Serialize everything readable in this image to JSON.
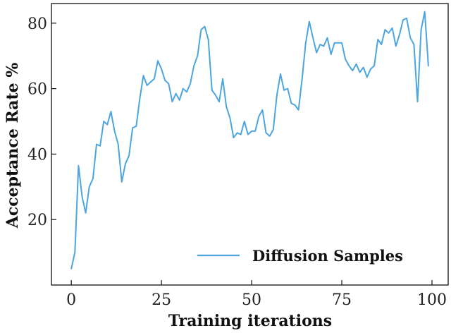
{
  "chart_data": {
    "type": "line",
    "xlabel": "Training iterations",
    "ylabel": "Acceptance Rate %",
    "xlim": [
      -5.5,
      104.5
    ],
    "ylim": [
      0,
      86
    ],
    "xticks": [
      0,
      25,
      50,
      75,
      100
    ],
    "yticks": [
      20,
      40,
      60,
      80
    ],
    "grid": false,
    "legend_position": "lower-right",
    "series": [
      {
        "name": "Diffusion Samples",
        "color": "#4da5e0",
        "x": [
          0,
          1,
          2,
          3,
          4,
          5,
          6,
          7,
          8,
          9,
          10,
          11,
          12,
          13,
          14,
          15,
          16,
          17,
          18,
          19,
          20,
          21,
          22,
          23,
          24,
          25,
          26,
          27,
          28,
          29,
          30,
          31,
          32,
          33,
          34,
          35,
          36,
          37,
          38,
          39,
          40,
          41,
          42,
          43,
          44,
          45,
          46,
          47,
          48,
          49,
          50,
          51,
          52,
          53,
          54,
          55,
          56,
          57,
          58,
          59,
          60,
          61,
          62,
          63,
          64,
          65,
          66,
          67,
          68,
          69,
          70,
          71,
          72,
          73,
          74,
          75,
          76,
          77,
          78,
          79,
          80,
          81,
          82,
          83,
          84,
          85,
          86,
          87,
          88,
          89,
          90,
          91,
          92,
          93,
          94,
          95,
          96,
          97,
          98,
          99
        ],
        "values": [
          5,
          10,
          36.5,
          27,
          22,
          30,
          32.5,
          43,
          42.5,
          50,
          49,
          53,
          47,
          43,
          31.5,
          37,
          39.5,
          48,
          48.5,
          57,
          64,
          61,
          62,
          63,
          68.5,
          66,
          62.5,
          61.5,
          56,
          58.5,
          56.5,
          60,
          59,
          61.5,
          67,
          70,
          78,
          79,
          75,
          59.5,
          58,
          56,
          63,
          54.5,
          51,
          45,
          46.5,
          46,
          50,
          46,
          47,
          47,
          51.5,
          53.5,
          46.5,
          45.5,
          47.5,
          58,
          64.5,
          59.5,
          60,
          55.5,
          55,
          53.5,
          63,
          74,
          80.5,
          75.5,
          71,
          73.5,
          73,
          75.5,
          70.5,
          74,
          74,
          74,
          69,
          67,
          65.5,
          67.5,
          65,
          66.5,
          63.5,
          66,
          67,
          75,
          73.5,
          78,
          77,
          78.5,
          73,
          76.5,
          81,
          81.5,
          75.5,
          73.5,
          56,
          78,
          83.5,
          67
        ]
      }
    ]
  }
}
